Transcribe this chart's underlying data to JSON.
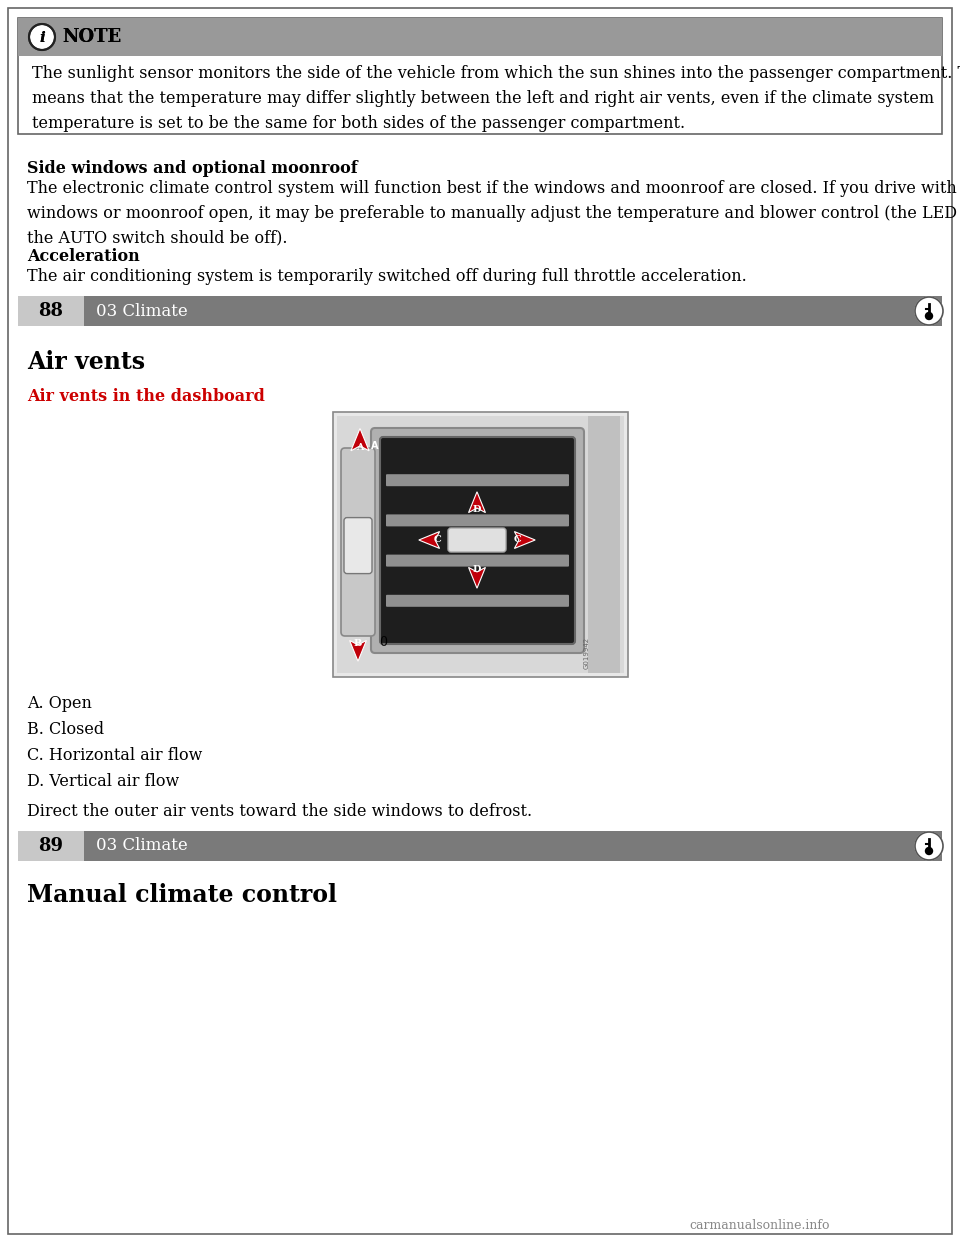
{
  "bg_color": "#ffffff",
  "note_header_bg": "#999999",
  "note_header_text": "NOTE",
  "note_body_text": "The sunlight sensor monitors the side of the vehicle from which the sun shines into the passenger compartment. This\nmeans that the temperature may differ slightly between the left and right air vents, even if the climate system\ntemperature is set to be the same for both sides of the passenger compartment.",
  "section1_bold": "Side windows and optional moonroof",
  "section1_text": "The electronic climate control system will function best if the windows and moonroof are closed. If you drive with the\nwindows or moonroof open, it may be preferable to manually adjust the temperature and blower control (the LED in\nthe AUTO switch should be off).",
  "section2_bold": "Acceleration",
  "section2_text": "The air conditioning system is temporarily switched off during full throttle acceleration.",
  "bar1_page": "88",
  "bar1_section": "03 Climate",
  "bar_bg": "#7a7a7a",
  "bar_page_bg": "#c8c8c8",
  "heading1": "Air vents",
  "subheading1_color": "#cc0000",
  "subheading1": "Air vents in the dashboard",
  "list_items": [
    "A. Open",
    "B. Closed",
    "C. Horizontal air flow",
    "D. Vertical air flow"
  ],
  "direct_text": "Direct the outer air vents toward the side windows to defrost.",
  "bar2_page": "89",
  "bar2_section": "03 Climate",
  "heading2": "Manual climate control",
  "watermark": "carmanualsonline.info",
  "arrow_color": "#c0000a"
}
